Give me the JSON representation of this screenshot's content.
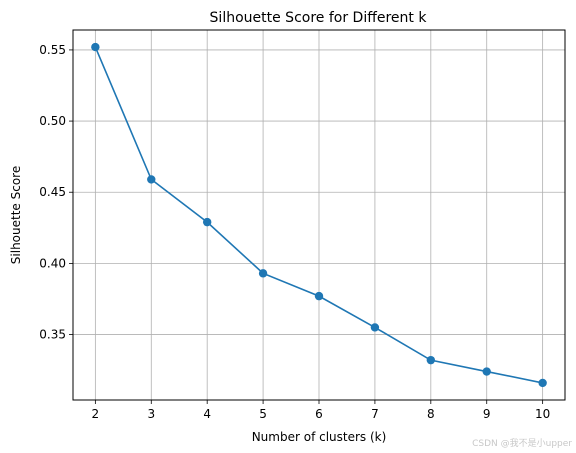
{
  "chart_data": {
    "type": "line",
    "title": "Silhouette Score for Different k",
    "xlabel": "Number of clusters (k)",
    "ylabel": "Silhouette Score",
    "x": [
      2,
      3,
      4,
      5,
      6,
      7,
      8,
      9,
      10
    ],
    "series": [
      {
        "values": [
          0.552,
          0.459,
          0.429,
          0.393,
          0.377,
          0.355,
          0.332,
          0.324,
          0.316
        ]
      }
    ],
    "xlim": [
      1.6,
      10.4
    ],
    "ylim": [
      0.304,
      0.564
    ],
    "xticks": [
      "2",
      "3",
      "4",
      "5",
      "6",
      "7",
      "8",
      "9",
      "10"
    ],
    "yticks": [
      "0.35",
      "0.40",
      "0.45",
      "0.50",
      "0.55"
    ],
    "ytick_values": [
      0.35,
      0.4,
      0.45,
      0.5,
      0.55
    ],
    "grid": true,
    "marker": "circle",
    "line_color": "#1f77b4"
  },
  "watermark": "CSDN @我不是小upper"
}
